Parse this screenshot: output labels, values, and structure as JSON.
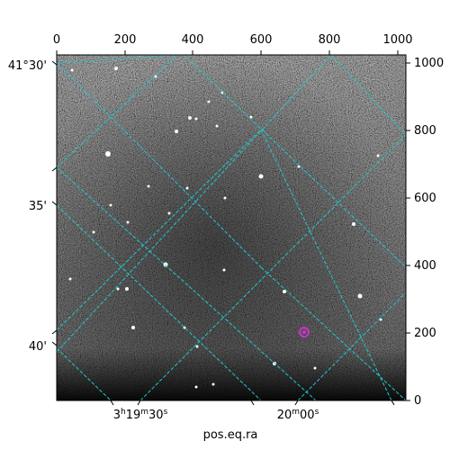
{
  "plot": {
    "pixel_axis": {
      "top_ticks": [
        "0",
        "200",
        "400",
        "600",
        "800",
        "1000"
      ],
      "right_ticks": [
        "0",
        "200",
        "400",
        "600",
        "800",
        "1000"
      ]
    },
    "world_axis": {
      "dec_ticks": {
        "t1": "41°30'",
        "t2": "35'",
        "t3": "40'"
      },
      "ra_ticks": {
        "t1": {
          "base": "3",
          "h": "h",
          "mid": "19",
          "m": "m",
          "sec": "30",
          "s": "s"
        },
        "t2": {
          "base": "20",
          "m": "m",
          "sec": "00",
          "s": "s"
        }
      },
      "xlabel": "pos.eq.ra"
    },
    "colors": {
      "grid": "#20c8d0",
      "marker": "#cc33cc",
      "image_dark": "#202020",
      "image_light": "#9a9a9a"
    },
    "marker": {
      "name": "source-marker"
    }
  }
}
